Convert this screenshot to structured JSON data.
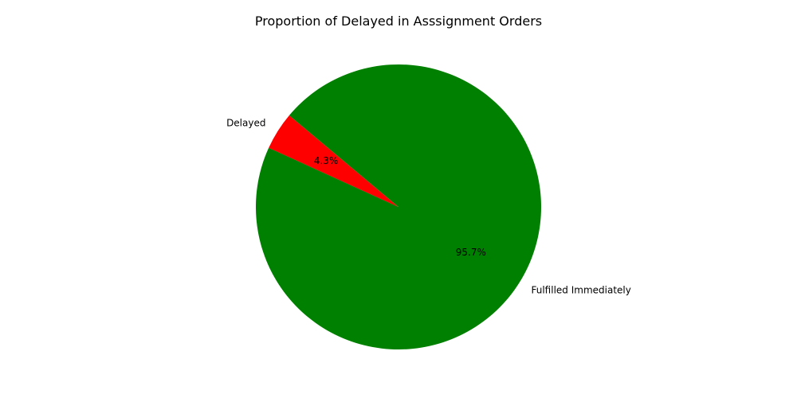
{
  "chart_data": {
    "type": "pie",
    "title": "Proportion of Delayed in Asssignment Orders",
    "slices": [
      {
        "label": "Delayed",
        "value": 4.3,
        "pct_label": "4.3%",
        "color": "#ff0000"
      },
      {
        "label": "Fulfilled Immediately",
        "value": 95.7,
        "pct_label": "95.7%",
        "color": "#008000"
      }
    ],
    "start_angle_deg": 140,
    "direction": "counterclockwise",
    "legend": "none"
  }
}
